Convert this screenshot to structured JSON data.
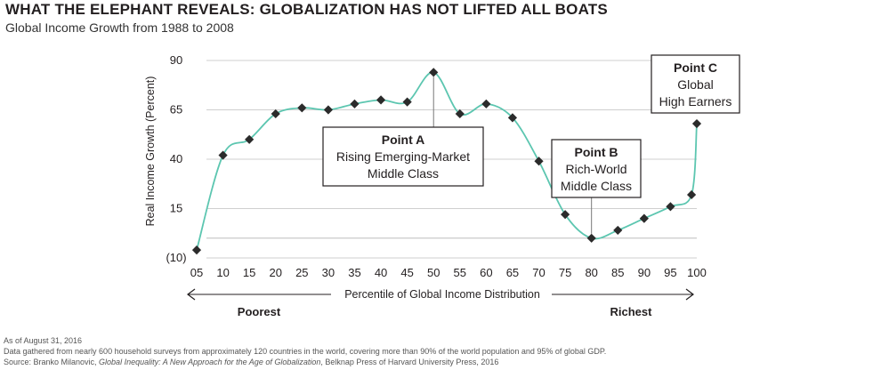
{
  "title": "WHAT THE ELEPHANT REVEALS: GLOBALIZATION HAS NOT LIFTED ALL BOATS",
  "subtitle": "Global Income Growth from 1988 to 2008",
  "colors": {
    "line": "#5cc6b0",
    "marker": "#2b2b2b",
    "grid": "#cfcfcf",
    "text": "#231f20"
  },
  "chart_data": {
    "type": "line",
    "title": "Global Income Growth from 1988 to 2008",
    "xlabel": "Percentile of Global Income Distribution",
    "ylabel": "Real Income Growth (Percent)",
    "x": [
      5,
      10,
      15,
      20,
      25,
      30,
      35,
      40,
      45,
      50,
      55,
      60,
      65,
      70,
      75,
      80,
      85,
      90,
      95,
      99,
      100
    ],
    "values": [
      -6,
      42,
      50,
      63,
      66,
      65,
      68,
      70,
      69,
      84,
      63,
      68,
      61,
      39,
      12,
      0,
      4,
      10,
      16,
      22,
      58
    ],
    "xticks": [
      "05",
      "10",
      "15",
      "20",
      "25",
      "30",
      "35",
      "40",
      "45",
      "50",
      "55",
      "60",
      "65",
      "70",
      "75",
      "80",
      "85",
      "90",
      "95",
      "100"
    ],
    "yticks": [
      "90",
      "65",
      "40",
      "15",
      "(10)"
    ],
    "ylim": [
      -10,
      90
    ],
    "xlim": [
      5,
      100
    ],
    "left_label": "Poorest",
    "right_label": "Richest",
    "annotations": [
      {
        "head": "Point A",
        "lines": [
          "Rising Emerging-Market",
          "Middle Class"
        ],
        "x": 50
      },
      {
        "head": "Point B",
        "lines": [
          "Rich-World",
          "Middle Class"
        ],
        "x": 80
      },
      {
        "head": "Point C",
        "lines": [
          "Global",
          "High Earners"
        ],
        "x": 100
      }
    ]
  },
  "footer": {
    "date": "As of August 31, 2016",
    "data_note": "Data gathered from nearly 600 household surveys from approximately 120 countries in the world, covering more than 90% of the world population and 95% of global GDP.",
    "source_prefix": "Source: Branko Milanovic, ",
    "source_italic": "Global  Inequality: A New Approach for the Age of Globalization",
    "source_suffix": ", Belknap Press of Harvard University Press, 2016"
  }
}
